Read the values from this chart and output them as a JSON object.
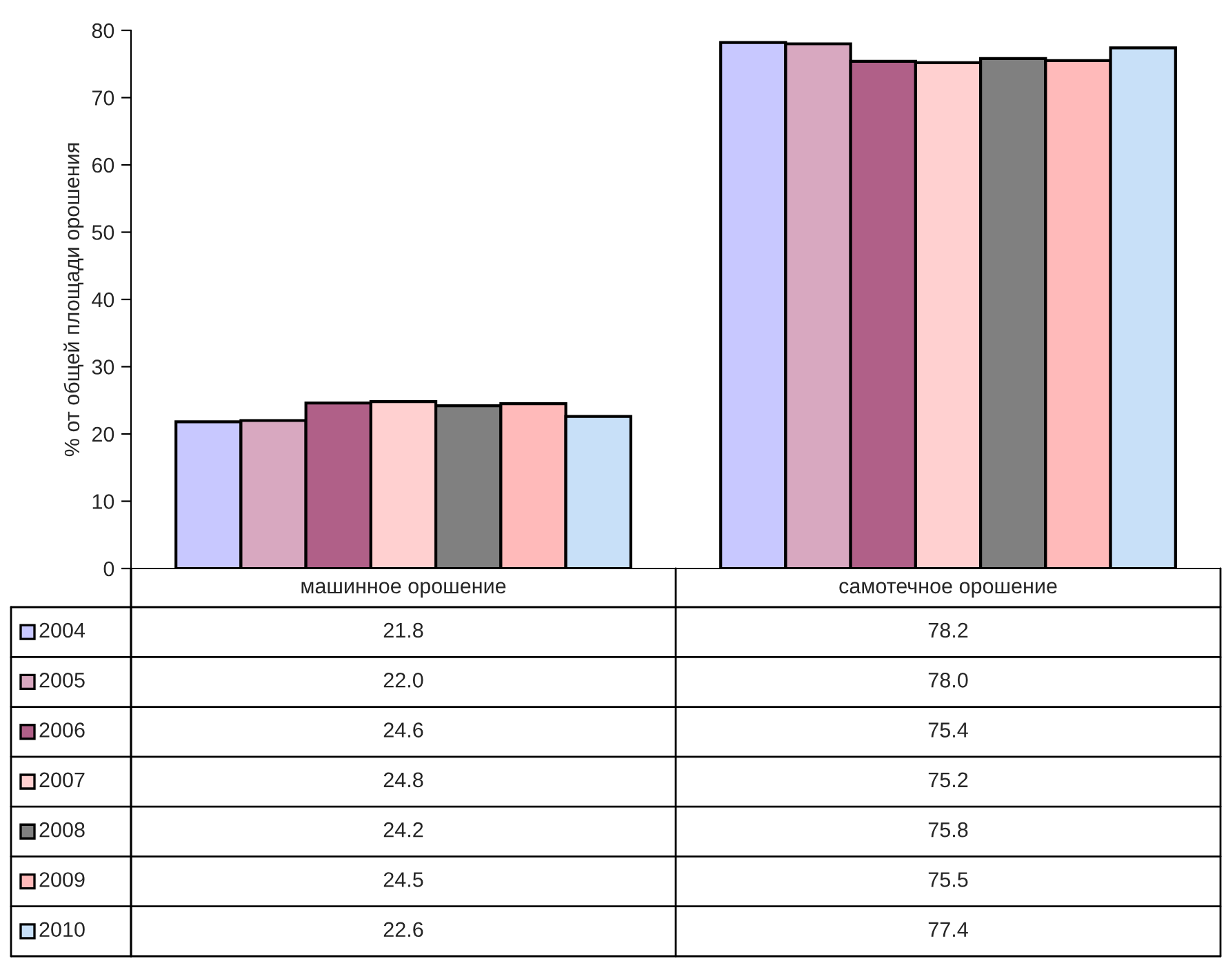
{
  "chart_data": {
    "type": "bar",
    "ylabel": "% от общей площади орошения",
    "categories": [
      "машинное орошение",
      "самотечное орошение"
    ],
    "series": [
      {
        "name": "2004",
        "color": "#c8c8ff",
        "values": [
          21.8,
          78.2
        ],
        "value_labels": [
          "21.8",
          "78.2"
        ]
      },
      {
        "name": "2005",
        "color": "#d8a8c0",
        "values": [
          22.0,
          78.0
        ],
        "value_labels": [
          "22.0",
          "78.0"
        ]
      },
      {
        "name": "2006",
        "color": "#b06088",
        "values": [
          24.6,
          75.4
        ],
        "value_labels": [
          "24.6",
          "75.4"
        ]
      },
      {
        "name": "2007",
        "color": "#ffd0d0",
        "values": [
          24.8,
          75.2
        ],
        "value_labels": [
          "24.8",
          "75.2"
        ]
      },
      {
        "name": "2008",
        "color": "#808080",
        "values": [
          24.2,
          75.8
        ],
        "value_labels": [
          "24.2",
          "75.8"
        ]
      },
      {
        "name": "2009",
        "color": "#ffbaba",
        "values": [
          24.5,
          75.5
        ],
        "value_labels": [
          "24.5",
          "75.5"
        ]
      },
      {
        "name": "2010",
        "color": "#c8e0f8",
        "values": [
          22.6,
          77.4
        ],
        "value_labels": [
          "22.6",
          "77.4"
        ]
      }
    ],
    "ylim": [
      0,
      80
    ],
    "yticks": [
      0,
      10,
      20,
      30,
      40,
      50,
      60,
      70,
      80
    ],
    "legend": "bottom",
    "grid": false
  }
}
